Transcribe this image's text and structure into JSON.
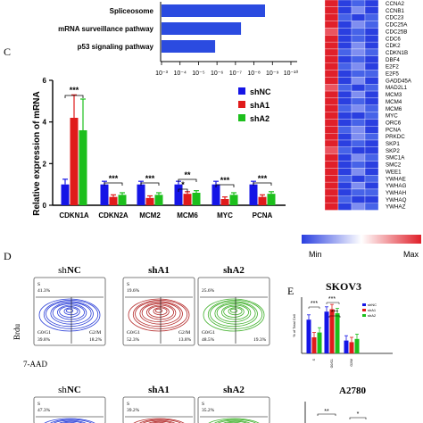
{
  "panel_labels": {
    "c": "C",
    "d": "D",
    "e": "E"
  },
  "pathways": {
    "terms": [
      "Spliceosome",
      "mRNA surveillance pathway",
      "p53 signaling pathway"
    ],
    "values": [
      8.6,
      7.3,
      5.9
    ],
    "axis_ticks": [
      "10⁻³",
      "10⁻⁴",
      "10⁻⁵",
      "10⁻⁶",
      "10⁻⁷",
      "10⁻⁸",
      "10⁻⁹",
      "10⁻¹⁰"
    ],
    "bar_color": "#2b4be0"
  },
  "heatmap": {
    "genes": [
      "CCNA2",
      "CCNB1",
      "CDC23",
      "CDC25A",
      "CDC25B",
      "CDC6",
      "CDK2",
      "CDKN1B",
      "DBF4",
      "E2F2",
      "E2F5",
      "GADD45A",
      "MAD2L1",
      "MCM3",
      "MCM4",
      "MCM6",
      "MYC",
      "ORC6",
      "PCNA",
      "PRKDC",
      "SKP1",
      "SKP2",
      "SMC1A",
      "SMC2",
      "WEE1",
      "YWHAE",
      "YWHAG",
      "YWHAH",
      "YWHAQ",
      "YWHAZ"
    ],
    "legend_min": "Min",
    "legend_max": "Max",
    "colors": {
      "low": "#2a3fe0",
      "mid": "#ffffff",
      "high": "#e0202a"
    }
  },
  "chart_data": [
    {
      "type": "bar",
      "ylabel": "Relative expression of mRNA",
      "ylim": [
        0,
        6
      ],
      "yticks": [
        "0",
        "2",
        "4",
        "6"
      ],
      "categories": [
        "CDKN1A",
        "CDKN2A",
        "MCM2",
        "MCM6",
        "MYC",
        "PCNA"
      ],
      "series": [
        {
          "name": "shNC",
          "color": "#1515e6",
          "values": [
            1.0,
            1.0,
            1.0,
            1.0,
            1.0,
            1.0
          ],
          "errors": [
            0.25,
            0.15,
            0.15,
            0.15,
            0.15,
            0.15
          ]
        },
        {
          "name": "shA1",
          "color": "#e01b1b",
          "values": [
            4.2,
            0.4,
            0.35,
            0.55,
            0.3,
            0.4
          ],
          "errors": [
            1.1,
            0.1,
            0.1,
            0.1,
            0.1,
            0.1
          ]
        },
        {
          "name": "shA2",
          "color": "#1cbf1c",
          "values": [
            3.6,
            0.5,
            0.5,
            0.6,
            0.5,
            0.55
          ],
          "errors": [
            1.5,
            0.1,
            0.1,
            0.1,
            0.1,
            0.1
          ]
        }
      ],
      "significance": [
        "***",
        "***",
        "***",
        "**",
        "*",
        "***",
        "***",
        "***"
      ]
    },
    {
      "type": "bar",
      "title": "SKOV3",
      "ylabel": "% of Total Cell",
      "categories": [
        "S",
        "G0/G1",
        "G2/M"
      ],
      "series": [
        {
          "name": "shNC",
          "color": "#1515e6",
          "values": [
            42,
            52,
            16
          ]
        },
        {
          "name": "shA1",
          "color": "#e01b1b",
          "values": [
            20,
            55,
            14
          ]
        },
        {
          "name": "shA2",
          "color": "#1cbf1c",
          "values": [
            26,
            50,
            18
          ]
        }
      ],
      "significance": [
        "***",
        "***",
        "***"
      ]
    },
    {
      "type": "bar",
      "title": "A2780",
      "significance": [
        "**",
        "*"
      ]
    }
  ],
  "flow": {
    "axis_y": "Brdu",
    "axis_x": "7-AAD",
    "top_row": [
      {
        "title_prefix": "sh",
        "title_main": "NC",
        "s_label": "S",
        "s_value": "41.3%",
        "g0g1_label": "G0/G1",
        "g0g1_value": "39.8%",
        "g2m_label": "G2/M",
        "g2m_value": "18.2%",
        "color": "#2a3ed8"
      },
      {
        "title_prefix": "",
        "title_main": "shA1",
        "s_label": "S",
        "s_value": "19.6%",
        "g0g1_label": "G0/G1",
        "g0g1_value": "52.3%",
        "g2m_label": "G2/M",
        "g2m_value": "13.8%",
        "color": "#b42a2a"
      },
      {
        "title_prefix": "",
        "title_main": "shA2",
        "s_label": "",
        "s_value": "25.6%",
        "g0g1_label": "G0/G1",
        "g0g1_value": "48.5%",
        "g2m_label": "",
        "g2m_value": "19.3%",
        "color": "#3fb02a"
      }
    ],
    "bottom_row": [
      {
        "title_prefix": "sh",
        "title_main": "NC",
        "s_label": "S",
        "s_value": "47.3%",
        "color": "#2a3ed8"
      },
      {
        "title_prefix": "",
        "title_main": "shA1",
        "s_label": "S",
        "s_value": "39.2%",
        "color": "#b42a2a"
      },
      {
        "title_prefix": "",
        "title_main": "shA2",
        "s_label": "S",
        "s_value": "35.2%",
        "color": "#3fb02a"
      }
    ]
  }
}
